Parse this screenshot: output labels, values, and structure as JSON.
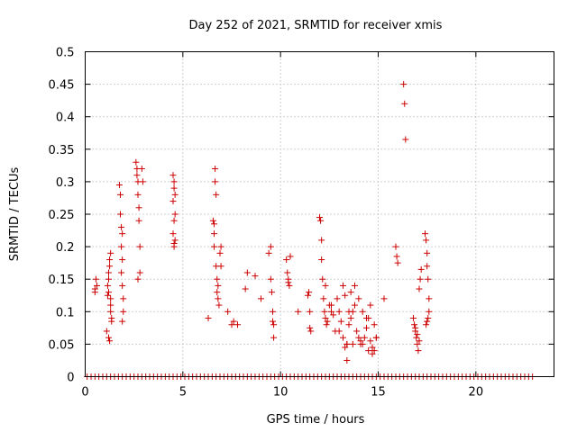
{
  "chart_data": {
    "type": "scatter",
    "title": "Day 252 of 2021, SRMTID for receiver xmis",
    "xlabel": "GPS time / hours",
    "ylabel": "SRMTID / TECUs",
    "xlim": [
      0,
      24
    ],
    "ylim": [
      0,
      0.5
    ],
    "grid": true,
    "marker": "+",
    "color": "#cc0000",
    "x_ticks": [
      0,
      5,
      10,
      15,
      20
    ],
    "x_tick_labels": [
      "0",
      "5",
      "10",
      "15",
      "20"
    ],
    "y_ticks": [
      0,
      0.05,
      0.1,
      0.15,
      0.2,
      0.25,
      0.3,
      0.35,
      0.4,
      0.45,
      0.5
    ],
    "y_tick_labels": [
      "0",
      "0.05",
      "0.1",
      "0.15",
      "0.2",
      "0.25",
      "0.3",
      "0.35",
      "0.4",
      "0.45",
      "0.5"
    ],
    "series": [
      {
        "name": "SRMTID",
        "x": [
          0.5,
          0.5,
          0.55,
          0.6,
          1.15,
          1.2,
          1.2,
          1.25,
          1.25,
          1.3,
          1.3,
          1.3,
          1.35,
          1.35,
          1.1,
          1.2,
          1.25,
          1.2,
          1.3,
          1.15,
          1.75,
          1.8,
          1.8,
          1.85,
          1.85,
          1.9,
          1.85,
          1.9,
          1.95,
          1.95,
          1.9,
          1.9,
          2.6,
          2.65,
          2.65,
          2.7,
          2.7,
          2.75,
          2.75,
          2.8,
          2.8,
          2.9,
          2.95,
          2.7,
          4.5,
          4.55,
          4.55,
          4.6,
          4.6,
          4.55,
          4.5,
          4.6,
          4.55,
          4.55,
          4.5,
          6.3,
          6.55,
          6.6,
          6.6,
          6.65,
          6.65,
          6.7,
          6.7,
          6.75,
          6.75,
          6.8,
          6.8,
          6.9,
          6.95,
          6.95,
          6.85,
          6.6,
          7.3,
          7.5,
          7.6,
          7.8,
          8.3,
          8.2,
          8.7,
          9.0,
          9.4,
          9.5,
          9.5,
          9.55,
          9.6,
          9.6,
          9.65,
          9.65,
          10.3,
          10.35,
          10.4,
          10.4,
          10.45,
          10.5,
          10.9,
          11.4,
          11.45,
          11.5,
          11.5,
          11.55,
          12.0,
          12.05,
          12.1,
          12.1,
          12.15,
          12.2,
          12.25,
          12.3,
          12.35,
          12.4,
          12.5,
          12.6,
          12.7,
          12.8,
          12.9,
          13.0,
          13.1,
          13.2,
          13.3,
          13.4,
          13.5,
          13.6,
          13.7,
          13.8,
          13.9,
          14.0,
          14.1,
          14.2,
          14.3,
          14.4,
          14.5,
          14.6,
          14.7,
          14.8,
          14.9,
          13.2,
          13.3,
          13.5,
          13.6,
          13.8,
          14.0,
          14.2,
          14.4,
          14.6,
          14.8,
          14.9,
          12.3,
          12.6,
          13.0,
          13.4,
          13.7,
          14.1,
          14.5,
          14.7,
          13.4,
          15.3,
          15.9,
          15.95,
          16.0,
          16.3,
          16.35,
          16.4,
          16.8,
          16.85,
          16.9,
          16.95,
          17.0,
          17.05,
          17.1,
          17.15,
          17.2,
          16.9,
          17.0,
          17.1,
          17.4,
          17.45,
          17.5,
          17.5,
          17.55,
          17.6,
          17.6,
          17.55,
          17.5,
          17.45
        ],
        "y": [
          0.135,
          0.13,
          0.15,
          0.14,
          0.14,
          0.15,
          0.16,
          0.17,
          0.18,
          0.12,
          0.11,
          0.1,
          0.09,
          0.085,
          0.07,
          0.06,
          0.055,
          0.13,
          0.19,
          0.125,
          0.295,
          0.28,
          0.25,
          0.23,
          0.2,
          0.18,
          0.16,
          0.14,
          0.12,
          0.1,
          0.085,
          0.22,
          0.33,
          0.32,
          0.31,
          0.3,
          0.28,
          0.26,
          0.24,
          0.2,
          0.16,
          0.32,
          0.3,
          0.15,
          0.31,
          0.3,
          0.29,
          0.28,
          0.25,
          0.24,
          0.22,
          0.21,
          0.205,
          0.2,
          0.27,
          0.09,
          0.24,
          0.22,
          0.2,
          0.32,
          0.3,
          0.28,
          0.17,
          0.15,
          0.13,
          0.12,
          0.14,
          0.19,
          0.2,
          0.17,
          0.11,
          0.235,
          0.1,
          0.08,
          0.085,
          0.08,
          0.16,
          0.135,
          0.155,
          0.12,
          0.19,
          0.2,
          0.15,
          0.13,
          0.1,
          0.085,
          0.08,
          0.06,
          0.18,
          0.16,
          0.15,
          0.145,
          0.14,
          0.185,
          0.1,
          0.125,
          0.13,
          0.1,
          0.075,
          0.07,
          0.245,
          0.24,
          0.21,
          0.18,
          0.15,
          0.12,
          0.1,
          0.09,
          0.08,
          0.085,
          0.11,
          0.1,
          0.095,
          0.07,
          0.12,
          0.1,
          0.085,
          0.06,
          0.045,
          0.05,
          0.08,
          0.09,
          0.1,
          0.11,
          0.07,
          0.06,
          0.055,
          0.05,
          0.06,
          0.075,
          0.09,
          0.055,
          0.045,
          0.04,
          0.06,
          0.14,
          0.125,
          0.1,
          0.13,
          0.14,
          0.12,
          0.1,
          0.09,
          0.11,
          0.08,
          0.06,
          0.14,
          0.11,
          0.07,
          0.05,
          0.05,
          0.05,
          0.04,
          0.035,
          0.025,
          0.12,
          0.2,
          0.185,
          0.175,
          0.45,
          0.42,
          0.365,
          0.09,
          0.08,
          0.07,
          0.06,
          0.05,
          0.04,
          0.135,
          0.15,
          0.165,
          0.075,
          0.065,
          0.055,
          0.22,
          0.21,
          0.19,
          0.17,
          0.15,
          0.12,
          0.1,
          0.09,
          0.085,
          0.08
        ],
        "zero_x": [
          0.1,
          0.3,
          0.5,
          0.7,
          0.9,
          1.1,
          1.3,
          1.5,
          1.7,
          1.9,
          2.1,
          2.3,
          2.5,
          2.7,
          2.9,
          3.1,
          3.3,
          3.5,
          3.7,
          3.9,
          4.1,
          4.3,
          4.5,
          4.7,
          4.9,
          5.1,
          5.3,
          5.5,
          5.7,
          5.9,
          6.1,
          6.3,
          6.5,
          6.7,
          6.9,
          7.1,
          7.3,
          7.5,
          7.7,
          7.9,
          8.1,
          8.3,
          8.5,
          8.7,
          8.9,
          9.1,
          9.3,
          9.5,
          9.7,
          9.9,
          10.1,
          10.3,
          10.5,
          10.7,
          10.9,
          11.1,
          11.3,
          11.5,
          11.7,
          11.9,
          12.1,
          12.3,
          12.5,
          12.7,
          12.9,
          13.1,
          13.3,
          13.5,
          13.7,
          13.9,
          14.1,
          14.3,
          14.5,
          14.7,
          14.9,
          15.1,
          15.3,
          15.5,
          15.7,
          15.9,
          16.1,
          16.3,
          16.5,
          16.7,
          16.9,
          17.1,
          17.3,
          17.5,
          17.7,
          17.9,
          18.1,
          18.3,
          18.5,
          18.7,
          18.9,
          19.1,
          19.3,
          19.5,
          19.7,
          19.9,
          20.1,
          20.3,
          20.5,
          20.7,
          20.9,
          21.1,
          21.3,
          21.5,
          21.7,
          21.9,
          22.1,
          22.3,
          22.5,
          22.7,
          22.9
        ]
      }
    ]
  }
}
